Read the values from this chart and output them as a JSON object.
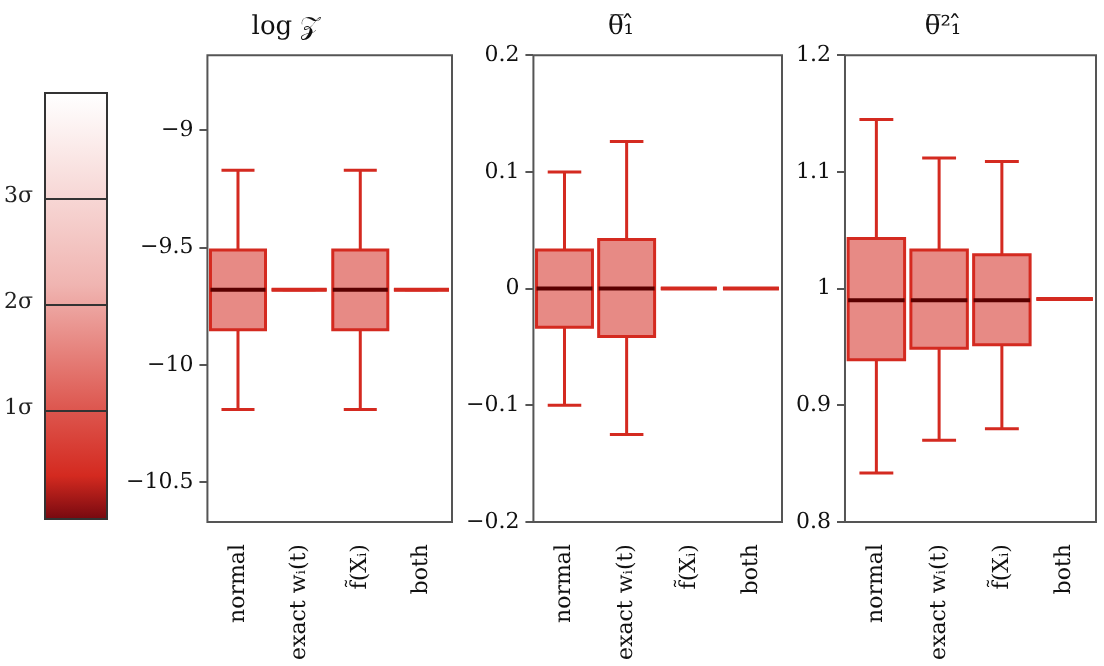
{
  "chart_data": [
    {
      "type": "box",
      "title": "log 𝒵",
      "annotations": [
        "3σ",
        "2σ",
        "1σ"
      ],
      "categories": [
        "normal",
        "exact wᵢ(t)",
        "f̃(Xᵢ)",
        "both"
      ],
      "ylim": [
        -10.67,
        -8.68
      ],
      "yticks": [
        -10.5,
        -10.0,
        -9.5,
        -9.0
      ],
      "color": "#d42a20",
      "boxes": [
        {
          "low": -10.19,
          "q1": -9.85,
          "median": -9.68,
          "q3": -9.51,
          "high": -9.17
        },
        {
          "low": -9.68,
          "q1": -9.68,
          "median": -9.68,
          "q3": -9.68,
          "high": -9.68
        },
        {
          "low": -10.19,
          "q1": -9.85,
          "median": -9.68,
          "q3": -9.51,
          "high": -9.17
        },
        {
          "low": -9.68,
          "q1": -9.68,
          "median": -9.68,
          "q3": -9.68,
          "high": -9.68
        }
      ]
    },
    {
      "type": "box",
      "title": "θ̅₁̂",
      "categories": [
        "normal",
        "exact wᵢ(t)",
        "f̃(Xᵢ)",
        "both"
      ],
      "ylim": [
        -0.2,
        0.2
      ],
      "yticks": [
        -0.2,
        -0.1,
        0.0,
        0.1,
        0.2
      ],
      "color": "#d42a20",
      "boxes": [
        {
          "low": -0.1,
          "q1": -0.033,
          "median": 0,
          "q3": 0.033,
          "high": 0.1
        },
        {
          "low": -0.125,
          "q1": -0.041,
          "median": 0,
          "q3": 0.042,
          "high": 0.126
        },
        {
          "low": 0,
          "q1": 0,
          "median": 0,
          "q3": 0,
          "high": 0
        },
        {
          "low": 0,
          "q1": 0,
          "median": 0,
          "q3": 0,
          "high": 0
        }
      ]
    },
    {
      "type": "box",
      "title": "θ̅²₁̂",
      "categories": [
        "normal",
        "exact wᵢ(t)",
        "f̃(Xᵢ)",
        "both"
      ],
      "ylim": [
        0.8,
        1.2
      ],
      "yticks": [
        0.8,
        0.9,
        1.0,
        1.1,
        1.2
      ],
      "color": "#d42a20",
      "boxes": [
        {
          "low": 0.842,
          "q1": 0.939,
          "median": 0.99,
          "q3": 1.043,
          "high": 1.145
        },
        {
          "low": 0.87,
          "q1": 0.949,
          "median": 0.99,
          "q3": 1.033,
          "high": 1.112
        },
        {
          "low": 0.88,
          "q1": 0.952,
          "median": 0.99,
          "q3": 1.029,
          "high": 1.109
        },
        {
          "low": 0.991,
          "q1": 0.991,
          "median": 0.991,
          "q3": 0.991,
          "high": 0.991
        }
      ]
    }
  ]
}
